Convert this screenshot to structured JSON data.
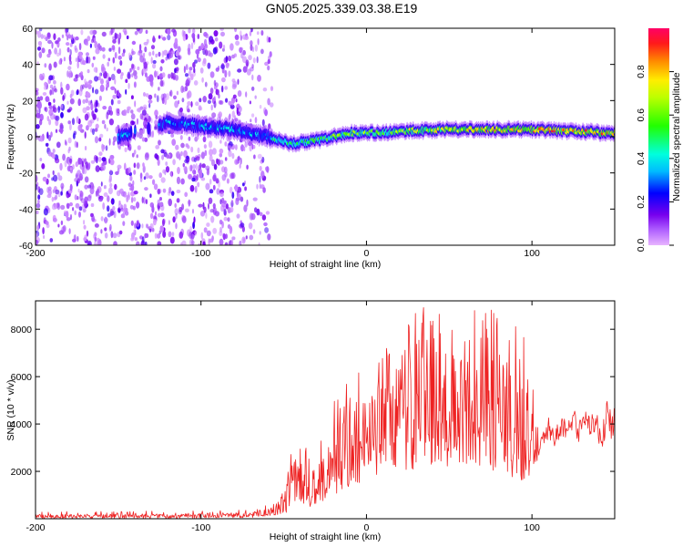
{
  "figure": {
    "title": "GN05.2025.339.03.38.E19"
  },
  "chart_data": [
    {
      "type": "heatmap",
      "name": "spectrogram",
      "title": "",
      "xlabel": "Height of straight line (km)",
      "ylabel": "Frequency (Hz)",
      "xlim": [
        -200,
        150
      ],
      "ylim": [
        -60,
        60
      ],
      "xticks": [
        -200,
        -100,
        0,
        100
      ],
      "yticks": [
        -60,
        -40,
        -20,
        0,
        20,
        40,
        60
      ],
      "colorbar": {
        "label": "Normalized spectral amplitude",
        "range": [
          0.0,
          1.0
        ],
        "ticks": [
          "0.0",
          "0.2",
          "0.4",
          "0.6",
          "0.8"
        ],
        "tick_values": [
          0.0,
          0.2,
          0.4,
          0.6,
          0.8
        ],
        "colormap": "hsv-rainbow (purple low → red high)"
      },
      "noise_region_x": [
        -200,
        -57
      ],
      "band_region_x": [
        -150,
        150
      ],
      "band_center_hz": [
        {
          "x": -150,
          "y": 0
        },
        {
          "x": -120,
          "y": 8
        },
        {
          "x": -100,
          "y": 6
        },
        {
          "x": -80,
          "y": 4
        },
        {
          "x": -60,
          "y": 0
        },
        {
          "x": -45,
          "y": -4
        },
        {
          "x": -30,
          "y": -2
        },
        {
          "x": -10,
          "y": 2
        },
        {
          "x": 0,
          "y": 2
        },
        {
          "x": 20,
          "y": 3
        },
        {
          "x": 50,
          "y": 4
        },
        {
          "x": 80,
          "y": 4
        },
        {
          "x": 100,
          "y": 4
        },
        {
          "x": 125,
          "y": 3
        },
        {
          "x": 150,
          "y": 2
        }
      ]
    },
    {
      "type": "line",
      "name": "snr",
      "title": "",
      "xlabel": "Height of straight line (km)",
      "ylabel": "SNR (10 * v/v)",
      "xlim": [
        -200,
        150
      ],
      "ylim": [
        0,
        9200
      ],
      "xticks": [
        -200,
        -100,
        0,
        100
      ],
      "yticks": [
        2000,
        4000,
        6000,
        8000
      ],
      "color": "#ee2222",
      "envelope": [
        {
          "x": -200,
          "low": 0,
          "high": 300
        },
        {
          "x": -120,
          "low": 0,
          "high": 330
        },
        {
          "x": -70,
          "low": 50,
          "high": 400
        },
        {
          "x": -55,
          "low": 150,
          "high": 700
        },
        {
          "x": -45,
          "low": 300,
          "high": 3000
        },
        {
          "x": -30,
          "low": 600,
          "high": 3200
        },
        {
          "x": -20,
          "low": 1000,
          "high": 5000
        },
        {
          "x": -5,
          "low": 1500,
          "high": 6500
        },
        {
          "x": 10,
          "low": 1800,
          "high": 7000
        },
        {
          "x": 20,
          "low": 2000,
          "high": 8800
        },
        {
          "x": 40,
          "low": 2200,
          "high": 9000
        },
        {
          "x": 60,
          "low": 2000,
          "high": 9000
        },
        {
          "x": 80,
          "low": 2000,
          "high": 9000
        },
        {
          "x": 95,
          "low": 1500,
          "high": 8000
        },
        {
          "x": 105,
          "low": 2400,
          "high": 4300
        },
        {
          "x": 125,
          "low": 2700,
          "high": 4600
        },
        {
          "x": 150,
          "low": 2400,
          "high": 5300
        }
      ]
    }
  ]
}
